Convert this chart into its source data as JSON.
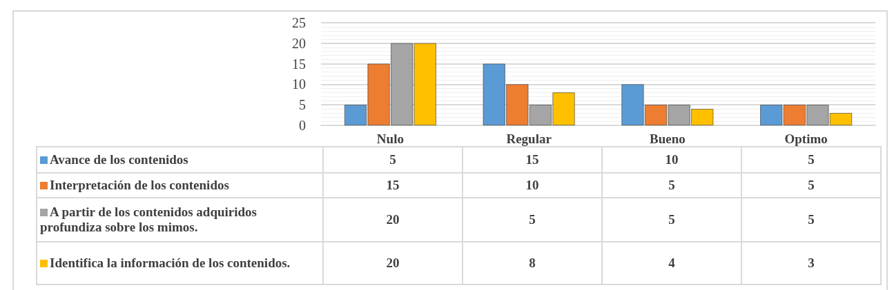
{
  "chart_data": {
    "type": "bar",
    "categories": [
      "Nulo",
      "Regular",
      "Bueno",
      "Optimo"
    ],
    "series": [
      {
        "name": "Avance de los contenidos",
        "color": "#5b9bd5",
        "values": [
          5,
          15,
          10,
          5
        ]
      },
      {
        "name": "Interpretación de los contenidos",
        "color": "#ed7d31",
        "values": [
          15,
          10,
          5,
          5
        ]
      },
      {
        "name": "A partir de los contenidos adquiridos profundiza sobre los mimos.",
        "color": "#a5a5a5",
        "values": [
          20,
          5,
          5,
          5
        ]
      },
      {
        "name": "Identifica la información de los contenidos.",
        "color": "#ffc000",
        "values": [
          20,
          8,
          4,
          3
        ]
      }
    ],
    "ylim": [
      0,
      25
    ],
    "yticks": [
      0,
      5,
      10,
      15,
      20,
      25
    ],
    "grid": "y",
    "legend": "bottom",
    "data_labels": true
  }
}
